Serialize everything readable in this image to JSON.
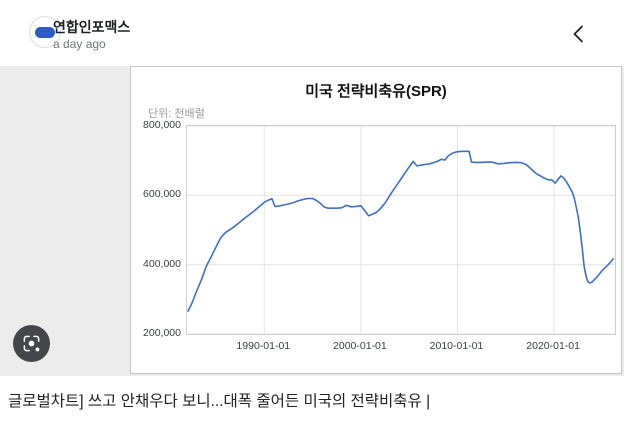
{
  "header": {
    "source_name": "연합인포맥스",
    "time_ago": "a day ago"
  },
  "chart_data": {
    "type": "line",
    "title": "미국 전략비축유(SPR)",
    "unit_label": "단위: 천배럴",
    "xlabel": "",
    "ylabel": "",
    "grid": true,
    "legend_position": "none",
    "line_color": "#3f6fbf",
    "grid_color": "#e4e4e4",
    "xlim": [
      1982,
      2026.3
    ],
    "ylim": [
      200000,
      800000
    ],
    "x_ticks": [
      "1990-01-01",
      "2000-01-01",
      "2010-01-01",
      "2020-01-01"
    ],
    "x_tick_years": [
      1990,
      2000,
      2010,
      2020
    ],
    "y_ticks": [
      200000,
      400000,
      600000,
      800000
    ],
    "y_tick_labels": [
      "200,000",
      "400,000",
      "600,000",
      "800,000"
    ],
    "series": [
      {
        "name": "SPR",
        "points": [
          [
            1982.1,
            266000
          ],
          [
            1982.5,
            288000
          ],
          [
            1983,
            324000
          ],
          [
            1983.5,
            357000
          ],
          [
            1984,
            396000
          ],
          [
            1984.5,
            423000
          ],
          [
            1985,
            451000
          ],
          [
            1985.5,
            478000
          ],
          [
            1986,
            493000
          ],
          [
            1986.5,
            502000
          ],
          [
            1987,
            512000
          ],
          [
            1987.5,
            523000
          ],
          [
            1988,
            535000
          ],
          [
            1988.5,
            545000
          ],
          [
            1989,
            556000
          ],
          [
            1989.5,
            568000
          ],
          [
            1990,
            580000
          ],
          [
            1990.4,
            586000
          ],
          [
            1990.8,
            590000
          ],
          [
            1991.1,
            568000
          ],
          [
            1991.5,
            569000
          ],
          [
            1992,
            572000
          ],
          [
            1992.5,
            575000
          ],
          [
            1993,
            579000
          ],
          [
            1993.5,
            584000
          ],
          [
            1994,
            588000
          ],
          [
            1994.5,
            591000
          ],
          [
            1995,
            591000
          ],
          [
            1995.4,
            585000
          ],
          [
            1995.8,
            577000
          ],
          [
            1996.2,
            566000
          ],
          [
            1996.6,
            563000
          ],
          [
            1997,
            563000
          ],
          [
            1997.5,
            563000
          ],
          [
            1998,
            564000
          ],
          [
            1998.5,
            571000
          ],
          [
            1999,
            567000
          ],
          [
            1999.5,
            568000
          ],
          [
            2000,
            570000
          ],
          [
            2000.4,
            556000
          ],
          [
            2000.8,
            541000
          ],
          [
            2001.2,
            546000
          ],
          [
            2001.6,
            551000
          ],
          [
            2002,
            561000
          ],
          [
            2002.5,
            578000
          ],
          [
            2003,
            600000
          ],
          [
            2003.5,
            621000
          ],
          [
            2004,
            641000
          ],
          [
            2004.5,
            662000
          ],
          [
            2005,
            682000
          ],
          [
            2005.4,
            698000
          ],
          [
            2005.8,
            685000
          ],
          [
            2006.2,
            687000
          ],
          [
            2006.6,
            689000
          ],
          [
            2007,
            690000
          ],
          [
            2007.5,
            694000
          ],
          [
            2008,
            699000
          ],
          [
            2008.3,
            704000
          ],
          [
            2008.7,
            702000
          ],
          [
            2009,
            713000
          ],
          [
            2009.5,
            722000
          ],
          [
            2010,
            726000
          ],
          [
            2010.6,
            727000
          ],
          [
            2011.2,
            727000
          ],
          [
            2011.45,
            696000
          ],
          [
            2011.8,
            695000
          ],
          [
            2012.4,
            695000
          ],
          [
            2013,
            696000
          ],
          [
            2013.6,
            696000
          ],
          [
            2014.2,
            691000
          ],
          [
            2014.8,
            692000
          ],
          [
            2015.4,
            694000
          ],
          [
            2016,
            695000
          ],
          [
            2016.6,
            694000
          ],
          [
            2017.1,
            689000
          ],
          [
            2017.5,
            679000
          ],
          [
            2018,
            666000
          ],
          [
            2018.3,
            660000
          ],
          [
            2018.7,
            654000
          ],
          [
            2019,
            649000
          ],
          [
            2019.4,
            645000
          ],
          [
            2019.8,
            644000
          ],
          [
            2020.1,
            635000
          ],
          [
            2020.4,
            646000
          ],
          [
            2020.7,
            656000
          ],
          [
            2021,
            650000
          ],
          [
            2021.3,
            638000
          ],
          [
            2021.6,
            623000
          ],
          [
            2021.9,
            608000
          ],
          [
            2022.1,
            590000
          ],
          [
            2022.3,
            564000
          ],
          [
            2022.5,
            536000
          ],
          [
            2022.7,
            497000
          ],
          [
            2022.9,
            448000
          ],
          [
            2023.1,
            396000
          ],
          [
            2023.3,
            368000
          ],
          [
            2023.5,
            351000
          ],
          [
            2023.7,
            347000
          ],
          [
            2023.9,
            349000
          ],
          [
            2024.1,
            355000
          ],
          [
            2024.4,
            363000
          ],
          [
            2024.7,
            373000
          ],
          [
            2025,
            384000
          ],
          [
            2025.3,
            392000
          ],
          [
            2025.6,
            400000
          ],
          [
            2025.9,
            409000
          ],
          [
            2026.1,
            417000
          ]
        ]
      }
    ]
  },
  "caption": {
    "text": "글로벌차트] 쓰고 안채우다 보니...대폭 줄어든 미국의 전략비축유 |"
  }
}
